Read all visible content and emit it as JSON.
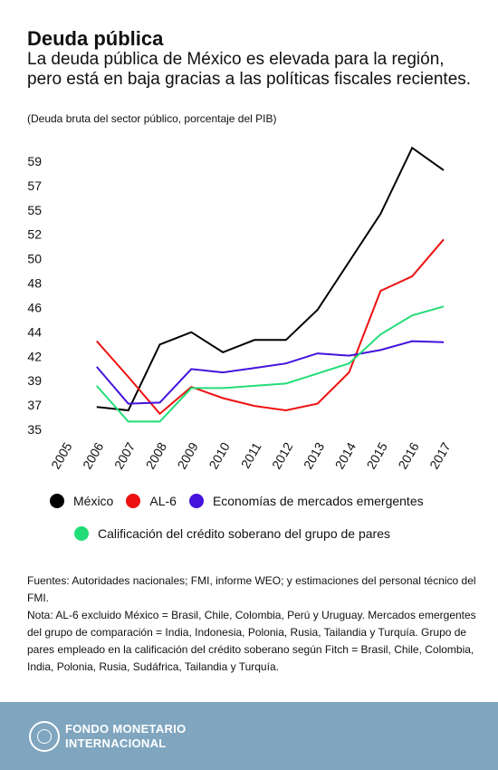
{
  "header": {
    "title": "Deuda pública",
    "subtitle": "La deuda pública de México es elevada para la región, pero está en baja gracias a las políticas fiscales recientes.",
    "unit_note": "(Deuda bruta del sector público, porcentaje del PIB)"
  },
  "chart_data": {
    "type": "line",
    "x": [
      "2005",
      "2006",
      "2007",
      "2008",
      "2009",
      "2010",
      "2011",
      "2012",
      "2013",
      "2014",
      "2015",
      "2016",
      "2017"
    ],
    "yticks": [
      "35",
      "37",
      "39",
      "42",
      "44",
      "46",
      "48",
      "50",
      "52",
      "55",
      "57",
      "59"
    ],
    "ylim": [
      35,
      59
    ],
    "grid": false,
    "legend_position": "bottom",
    "series": [
      {
        "name": "México",
        "color": "#000000",
        "values": [
          null,
          37.0,
          36.7,
          42.6,
          43.7,
          41.9,
          43.0,
          43.0,
          45.7,
          50.0,
          54.3,
          60.2,
          58.2
        ]
      },
      {
        "name": "AL-6",
        "color": "#ee1111",
        "values": [
          null,
          42.9,
          39.7,
          36.4,
          38.8,
          37.8,
          37.1,
          36.7,
          37.3,
          40.1,
          47.4,
          48.7,
          52.0
        ]
      },
      {
        "name": "Economías de mercados emergentes",
        "color": "#4411dd",
        "values": [
          null,
          40.6,
          37.3,
          37.4,
          40.4,
          40.1,
          40.5,
          40.9,
          41.8,
          41.6,
          42.1,
          42.9,
          42.8
        ]
      },
      {
        "name": "Calificación del crédito soberano del grupo de pares",
        "color": "#22dd77",
        "values": [
          null,
          38.9,
          35.7,
          35.7,
          38.7,
          38.7,
          38.9,
          39.1,
          40.0,
          40.9,
          43.5,
          45.2,
          46.0
        ]
      }
    ]
  },
  "footer_text": {
    "sources": "Fuentes: Autoridades nacionales; FMI, informe WEO; y estimaciones del personal técnico del FMI.",
    "note": "Nota: AL-6 excluido México = Brasil, Chile, Colombia, Perú y Uruguay. Mercados emergentes del grupo de comparación = India, Indonesia, Polonia, Rusia, Tailandia y Turquía. Grupo de pares empleado en la calificación del crédito soberano según Fitch = Brasil, Chile, Colombia, India, Polonia, Rusia, Sudáfrica, Tailandia y Turquía."
  },
  "brand": {
    "line1": "FONDO MONETARIO",
    "line2": "INTERNACIONAL",
    "footer_color": "#7fa5bf"
  }
}
